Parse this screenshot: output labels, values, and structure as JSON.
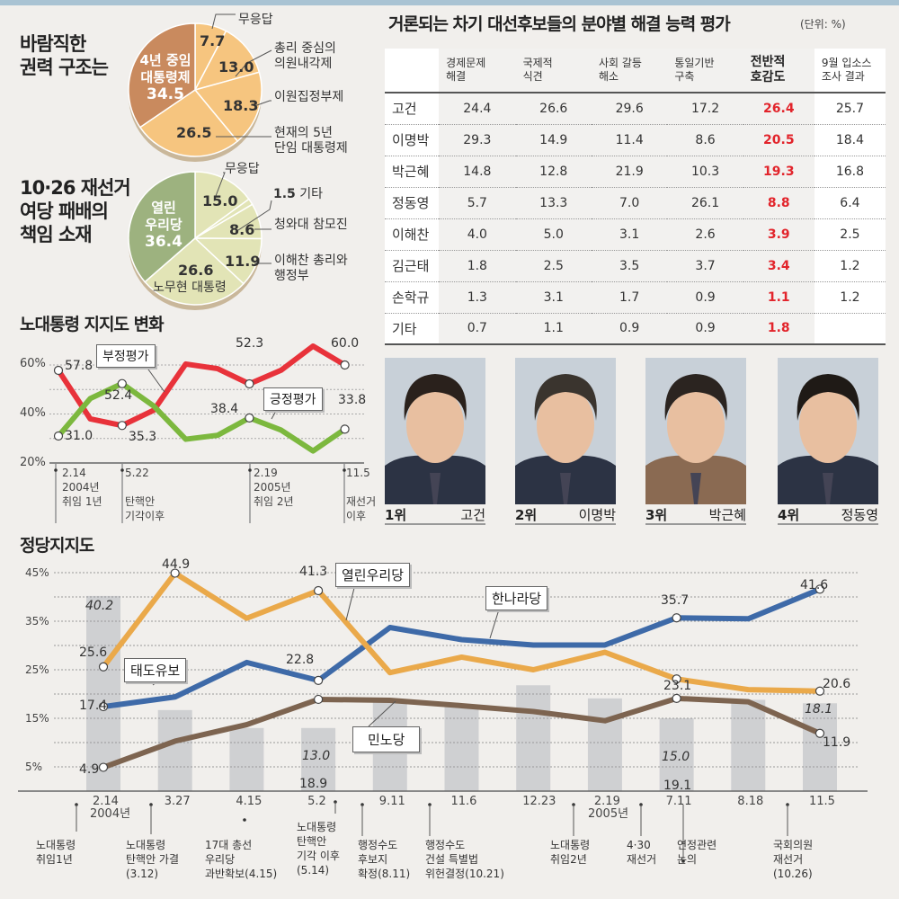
{
  "pie1": {
    "title": [
      "바람직한",
      "권력 구조는"
    ],
    "slices": [
      {
        "label": "무응답",
        "value": 7.7,
        "color": "#f6c57f"
      },
      {
        "label": "총리 중심의 의원내각제",
        "value": 13.0,
        "color": "#f6c57f"
      },
      {
        "label": "이원집정부제",
        "value": 18.3,
        "color": "#f6c57f"
      },
      {
        "label": "현재의 5년 단임 대통령제",
        "value": 26.5,
        "color": "#f6c57f"
      },
      {
        "label": "4년 중임 대통령제",
        "value": 34.5,
        "color": "#c98a5e"
      }
    ],
    "label_lines": {
      "s1": [
        "총리 중심의",
        "의원내각제"
      ],
      "s3": [
        "현재의 5년",
        "단임 대통령제"
      ],
      "s4": [
        "4년 중임",
        "대통령제"
      ]
    },
    "value_text": [
      "7.7",
      "13.0",
      "18.3",
      "26.5",
      "34.5"
    ]
  },
  "pie2": {
    "title": [
      "10·26 재선거",
      "여당 패배의",
      "책임 소재"
    ],
    "slices": [
      {
        "label": "무응답",
        "value": 15.0,
        "color": "#e2e4b6"
      },
      {
        "label": "기타",
        "value": 1.5,
        "color": "#e2e4b6"
      },
      {
        "label": "청와대 참모진",
        "value": 8.6,
        "color": "#e2e4b6"
      },
      {
        "label": "이해찬 총리와 행정부",
        "value": 11.9,
        "color": "#e2e4b6"
      },
      {
        "label": "노무현 대통령",
        "value": 26.6,
        "color": "#e2e4b6"
      },
      {
        "label": "열린우리당",
        "value": 36.4,
        "color": "#9db27f"
      }
    ],
    "label_lines": {
      "s3": [
        "이해찬 총리와",
        "행정부"
      ],
      "s5": [
        "열린",
        "우리당"
      ]
    },
    "value_text": [
      "15.0",
      "1.5",
      "8.6",
      "11.9",
      "26.6",
      "36.4"
    ]
  },
  "table": {
    "title": "거론되는 차기 대선후보들의 분야별 해결 능력 평가",
    "unit": "(단위: %)",
    "headers": [
      [
        "경제문제",
        "해결"
      ],
      [
        "국제적",
        "식견"
      ],
      [
        "사회 갈등",
        "해소"
      ],
      [
        "통일기반",
        "구축"
      ],
      [
        "전반적",
        "호감도"
      ],
      [
        "9월 입소스",
        "조사 결과"
      ]
    ],
    "rows": [
      {
        "name": "고건",
        "values": [
          "24.4",
          "26.6",
          "29.6",
          "17.2",
          "26.4",
          "25.7"
        ]
      },
      {
        "name": "이명박",
        "values": [
          "29.3",
          "14.9",
          "11.4",
          "8.6",
          "20.5",
          "18.4"
        ]
      },
      {
        "name": "박근혜",
        "values": [
          "14.8",
          "12.8",
          "21.9",
          "10.3",
          "19.3",
          "16.8"
        ]
      },
      {
        "name": "정동영",
        "values": [
          "5.7",
          "13.3",
          "7.0",
          "26.1",
          "8.8",
          "6.4"
        ]
      },
      {
        "name": "이해찬",
        "values": [
          "4.0",
          "5.0",
          "3.1",
          "2.6",
          "3.9",
          "2.5"
        ]
      },
      {
        "name": "김근태",
        "values": [
          "1.8",
          "2.5",
          "3.5",
          "3.7",
          "3.4",
          "1.2"
        ]
      },
      {
        "name": "손학규",
        "values": [
          "1.3",
          "3.1",
          "1.7",
          "0.9",
          "1.1",
          "1.2"
        ]
      },
      {
        "name": "기타",
        "values": [
          "0.7",
          "1.1",
          "0.9",
          "0.9",
          "1.8",
          ""
        ]
      }
    ],
    "highlight_color": "#e2242b"
  },
  "photos": [
    {
      "rank": "1위",
      "name": "고건"
    },
    {
      "rank": "2위",
      "name": "이명박"
    },
    {
      "rank": "3위",
      "name": "박근혜"
    },
    {
      "rank": "4위",
      "name": "정동영"
    }
  ],
  "chart_data": [
    {
      "type": "line",
      "title": "노대통령 지지도 변화",
      "ylim": [
        20,
        60
      ],
      "y_ticks": [
        "60%",
        "40%",
        "20%"
      ],
      "grid": true,
      "x_labels": [
        {
          "date": "2.14",
          "lines": [
            "2004년",
            "취임 1년"
          ]
        },
        {
          "date": "5.22",
          "lines": [
            "탄핵안",
            "기각이후"
          ]
        },
        {
          "date": "2.19",
          "lines": [
            "2005년",
            "취임 2년"
          ]
        },
        {
          "date": "11.5",
          "lines": [
            "재선거",
            "이후"
          ]
        }
      ],
      "series": [
        {
          "name": "부정평가",
          "color": "#e8323a",
          "values": [
            57.8,
            38.0,
            35.3,
            41.6,
            60.4,
            58.5,
            52.3,
            57.9,
            67.7,
            60.0
          ],
          "labeled": {
            "0": "57.8",
            "2": "35.3",
            "6": "52.3",
            "9": "60.0"
          }
        },
        {
          "name": "긍정평가",
          "color": "#7cb83e",
          "values": [
            31.0,
            46.3,
            52.4,
            43.2,
            29.7,
            31.3,
            38.4,
            33.4,
            24.9,
            33.8
          ],
          "labeled": {
            "0": "31.0",
            "2": "52.4",
            "6": "38.4",
            "9": "33.8"
          }
        }
      ],
      "labeled_text": {
        "neg": [
          "57.8",
          "35.3",
          "52.3",
          "60.0"
        ],
        "pos": [
          "31.0",
          "52.4",
          "38.4",
          "33.8"
        ]
      }
    },
    {
      "type": "line",
      "title": "정당지지도",
      "ylim": [
        0,
        45
      ],
      "y_ticks": [
        "45%",
        "35%",
        "25%",
        "15%",
        "5%"
      ],
      "grid": true,
      "categories": [
        "2.14",
        "3.27",
        "4.15",
        "5.2",
        "9.11",
        "11.6",
        "12.23",
        "2.19",
        "7.11",
        "8.18",
        "11.5"
      ],
      "year_labels": [
        "2004년",
        "2005년"
      ],
      "events": [
        "노대통령\n취임1년",
        "노대통령\n탄핵안 가결\n(3.12)",
        "17대 총선\n우리당\n과반확보(4.15)",
        "노대통령\n탄핵안\n기각 이후\n(5.14)",
        "행정수도\n후보지\n확정(8.11)",
        "행정수도\n건설 특별법\n위헌결정(10.21)",
        "노대통령\n취임2년",
        "4·30\n재선거",
        "연정관련\n논의",
        "국회의원\n재선거\n(10.26)"
      ],
      "series": [
        {
          "name": "한나라당",
          "color": "#3e6aa8",
          "values": [
            17.4,
            19.4,
            26.5,
            22.8,
            33.7,
            31.2,
            30.1,
            30.1,
            35.7,
            35.5,
            41.6
          ]
        },
        {
          "name": "열린우리당",
          "color": "#eaa94a",
          "values": [
            25.6,
            44.9,
            35.6,
            41.3,
            24.4,
            27.6,
            25.0,
            28.6,
            23.1,
            20.9,
            20.6
          ]
        },
        {
          "name": "민노당",
          "color": "#7d6450",
          "values": [
            4.9,
            10.3,
            13.7,
            18.9,
            18.7,
            17.6,
            16.4,
            14.5,
            19.1,
            18.4,
            11.9
          ]
        }
      ],
      "bars": {
        "name": "태도유보",
        "color": "#cfd0d2",
        "values": [
          40.2,
          16.7,
          13.0,
          13.0,
          18.9,
          17.3,
          21.8,
          19.1,
          15.0,
          18.8,
          18.1
        ]
      },
      "label_text": {
        "hannara": [
          "17.4",
          "22.8",
          "35.7",
          "41.6"
        ],
        "uri": [
          "25.6",
          "44.9",
          "41.3",
          "23.1",
          "20.6"
        ],
        "minno": [
          "4.9",
          "18.9",
          "19.1",
          "11.9"
        ],
        "bars": [
          "40.2",
          "13.0",
          "15.0",
          "18.1"
        ]
      }
    }
  ]
}
